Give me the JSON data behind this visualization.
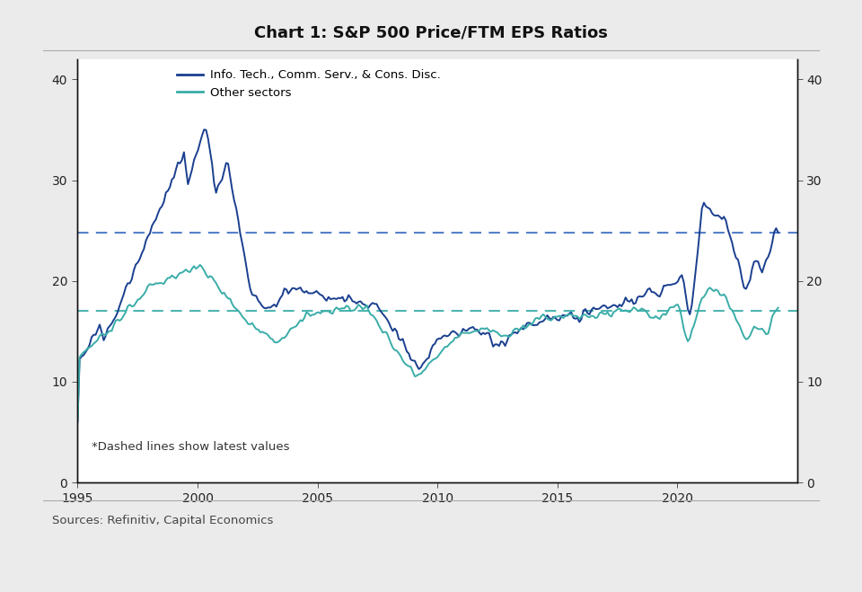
{
  "title": "Chart 1: S&P 500 Price/FTM EPS Ratios",
  "legend_tech": "Info. Tech., Comm. Serv., & Cons. Disc.",
  "legend_other": "Other sectors",
  "annotation": "*Dashed lines show latest values",
  "source": "Sources: Refinitiv, Capital Economics",
  "tech_dashed_value": 24.8,
  "other_dashed_value": 17.0,
  "ylim": [
    0,
    42
  ],
  "yticks": [
    0,
    10,
    20,
    30,
    40
  ],
  "xlim_start": 1995.0,
  "xlim_end": 2025.0,
  "xticks": [
    1995,
    2000,
    2005,
    2010,
    2015,
    2020
  ],
  "tech_color": "#1a3f8f",
  "other_color": "#3aada8",
  "tech_dash_color": "#4472c4",
  "other_dash_color": "#3aada8",
  "bg_color": "#ebebeb",
  "plot_bg_color": "#ffffff",
  "title_fontsize": 13,
  "label_fontsize": 10,
  "sep_color": "#aaaaaa"
}
